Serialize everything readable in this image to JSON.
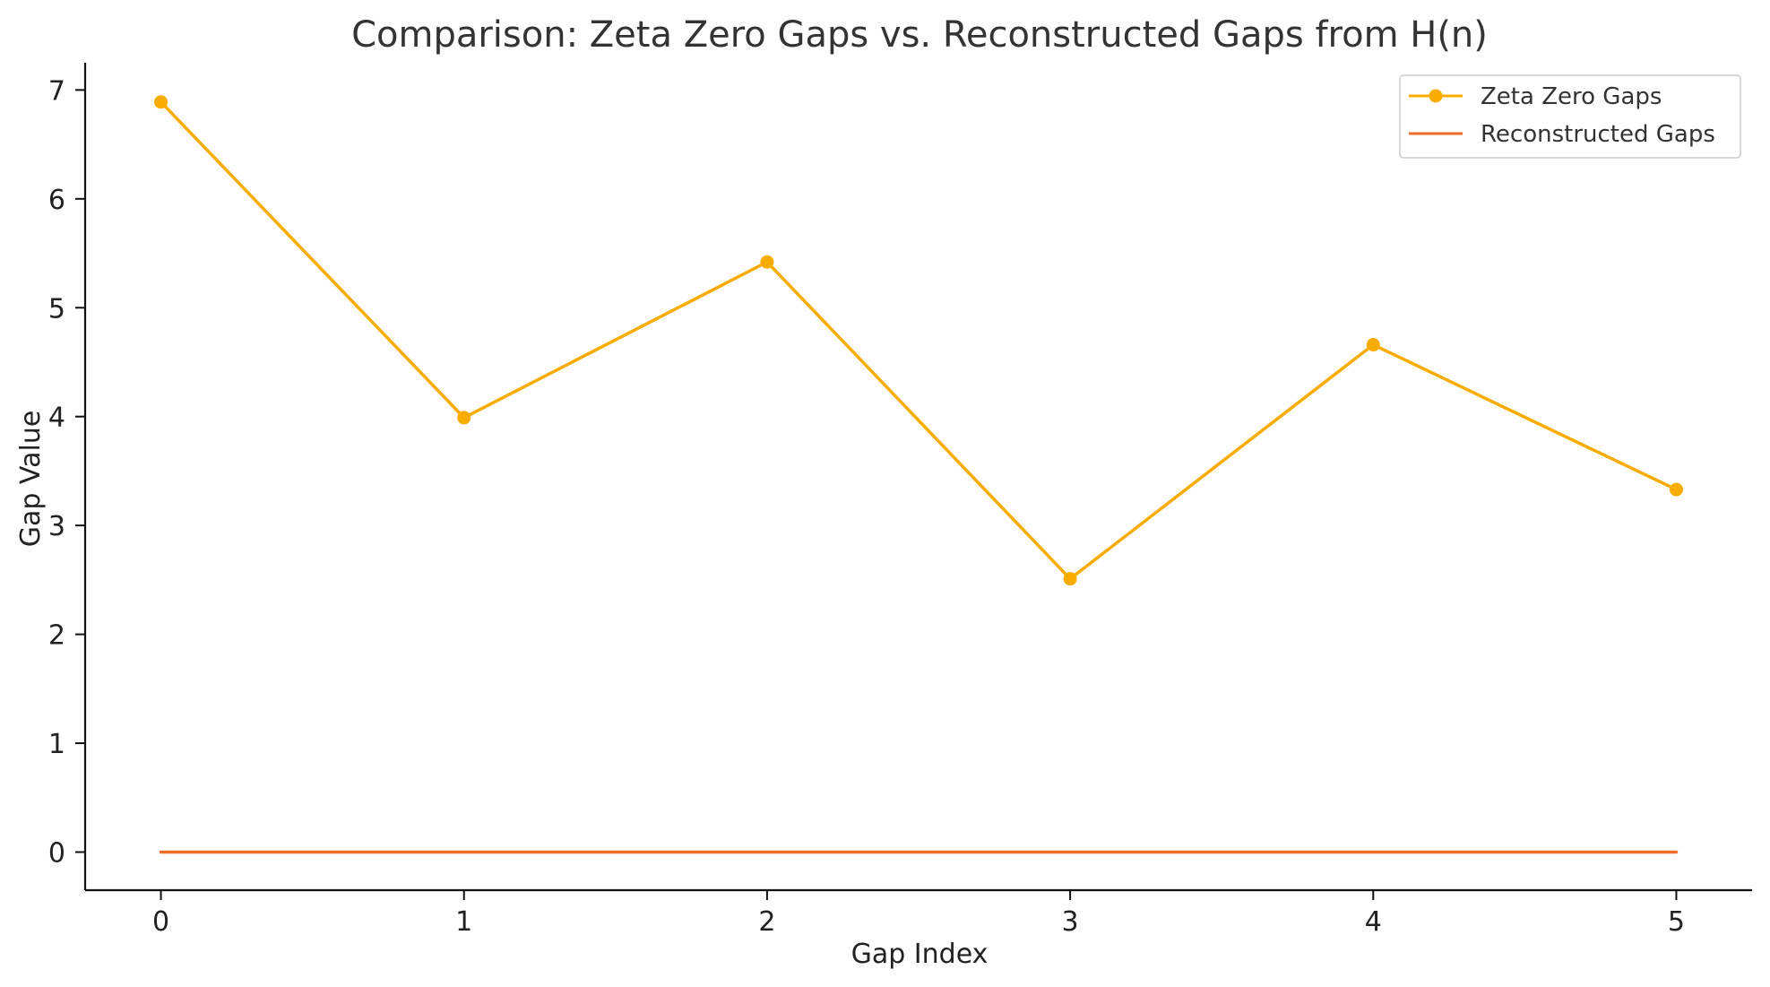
{
  "chart_data": {
    "type": "line",
    "title": "Comparison: Zeta Zero Gaps vs. Reconstructed Gaps from H(n)",
    "xlabel": "Gap Index",
    "ylabel": "Gap Value",
    "x": [
      0,
      1,
      2,
      3,
      4,
      5
    ],
    "xlim": [
      -0.25,
      5.25
    ],
    "ylim": [
      -0.35,
      7.25
    ],
    "xticks": [
      0,
      1,
      2,
      3,
      4,
      5
    ],
    "yticks": [
      0,
      1,
      2,
      3,
      4,
      5,
      6,
      7
    ],
    "grid": false,
    "legend_position": "top-right",
    "series": [
      {
        "name": "Zeta Zero Gaps",
        "values": [
          6.89,
          3.99,
          5.42,
          2.51,
          4.66,
          3.33
        ],
        "color": "#F9AC00",
        "marker": "circle"
      },
      {
        "name": "Reconstructed Gaps",
        "values": [
          0,
          0,
          0,
          0,
          0,
          0
        ],
        "color": "#F06C2A",
        "marker": "none"
      }
    ]
  }
}
